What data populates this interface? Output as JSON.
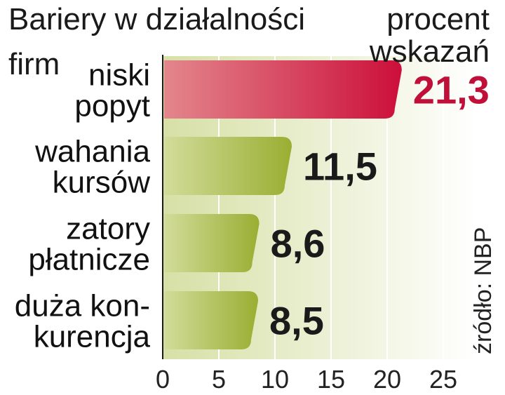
{
  "chart_data": {
    "type": "bar",
    "orientation": "horizontal",
    "title": "Bariery w działalności firm",
    "unit_label": "procent wskazań",
    "source": "źródło: NBP",
    "categories": [
      "niski popyt",
      "wahania kursów",
      "zatory płatnicze",
      "duża konkurencja"
    ],
    "category_lines": [
      [
        "niski",
        "popyt"
      ],
      [
        "wahania",
        "kursów"
      ],
      [
        "zatory",
        "płatnicze"
      ],
      [
        "duża kon-",
        "kurencja"
      ]
    ],
    "values": [
      21.3,
      11.5,
      8.6,
      8.5
    ],
    "value_labels": [
      "21,3",
      "11,5",
      "8,6",
      "8,5"
    ],
    "xlim": [
      0,
      25
    ],
    "xticks": [
      0,
      5,
      10,
      15,
      20,
      25
    ],
    "xtick_labels": [
      "0",
      "5",
      "10",
      "15",
      "20",
      "25"
    ],
    "grid": true,
    "colors": {
      "highlight_bar": "#c8183a",
      "highlight_label": "#c0103a",
      "bar": "#9fb33c",
      "label": "#1a1a1a",
      "plot_bg": "#e4eac2",
      "gridline": "#ffffff"
    }
  }
}
